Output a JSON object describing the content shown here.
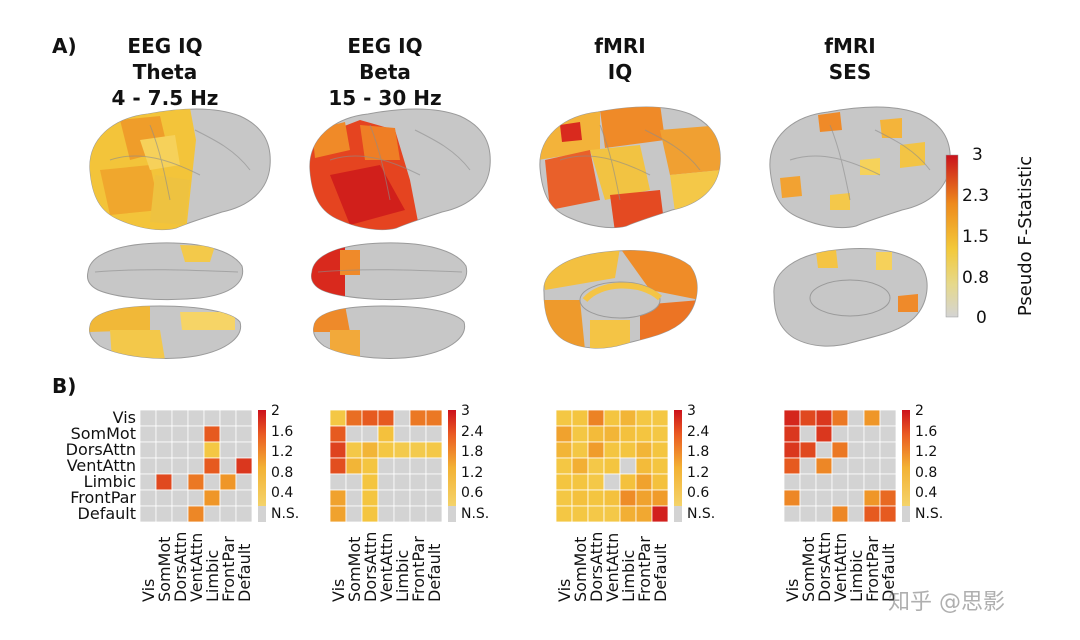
{
  "panel_a_label": "A)",
  "panel_b_label": "B)",
  "columns": [
    {
      "title_lines": [
        "EEG IQ",
        "Theta",
        "4 - 7.5 Hz"
      ]
    },
    {
      "title_lines": [
        "EEG IQ",
        "Beta",
        "15 - 30 Hz"
      ]
    },
    {
      "title_lines": [
        "fMRI",
        "IQ"
      ]
    },
    {
      "title_lines": [
        "fMRI",
        "SES"
      ]
    }
  ],
  "brain_colorbar": {
    "label": "Pseudo F-Statistic",
    "ticks": [
      "3",
      "2.3",
      "1.5",
      "0.8",
      "0"
    ]
  },
  "networks": [
    "Vis",
    "SomMot",
    "DorsAttn",
    "VentAttn",
    "Limbic",
    "FrontPar",
    "Default"
  ],
  "matrices": [
    {
      "name": "EEG IQ Theta",
      "colorbar_ticks": [
        "2",
        "1.6",
        "1.2",
        "0.8",
        "0.4",
        "N.S."
      ],
      "max": 2,
      "values": [
        [
          0,
          0,
          0,
          0,
          0,
          0,
          0
        ],
        [
          0,
          0,
          0,
          0,
          1.6,
          0,
          0
        ],
        [
          0,
          0,
          0,
          0,
          0.6,
          0,
          0
        ],
        [
          0,
          0,
          0,
          0,
          1.6,
          0,
          1.8
        ],
        [
          0,
          1.7,
          0,
          1.4,
          0,
          1.2,
          0
        ],
        [
          0,
          0,
          0,
          0,
          1.2,
          0,
          0
        ],
        [
          0,
          0,
          0,
          1.3,
          0,
          0,
          0
        ]
      ]
    },
    {
      "name": "EEG IQ Beta",
      "colorbar_ticks": [
        "3",
        "2.4",
        "1.8",
        "1.2",
        "0.6",
        "N.S."
      ],
      "max": 3,
      "values": [
        [
          0.9,
          2.2,
          2.4,
          2.4,
          0,
          2.1,
          2.1
        ],
        [
          2.4,
          0,
          0,
          1.1,
          0,
          0,
          0
        ],
        [
          2.6,
          0.8,
          1.3,
          0.9,
          0.7,
          0.7,
          0.8
        ],
        [
          2.5,
          1.3,
          1.0,
          0,
          0,
          0,
          0
        ],
        [
          0,
          0,
          1.0,
          0,
          0,
          0,
          0
        ],
        [
          1.6,
          0,
          1.0,
          0,
          0,
          0,
          0
        ],
        [
          1.6,
          0,
          1.0,
          0,
          0,
          0,
          0
        ]
      ]
    },
    {
      "name": "fMRI IQ",
      "colorbar_ticks": [
        "3",
        "2.4",
        "1.8",
        "1.2",
        "0.6",
        "N.S."
      ],
      "max": 3,
      "values": [
        [
          0.9,
          1.0,
          2.0,
          1.0,
          1.3,
          0.9,
          0.9
        ],
        [
          1.6,
          0.9,
          1.2,
          1.3,
          1.1,
          1.0,
          0.9
        ],
        [
          1.3,
          0.9,
          1.7,
          1.0,
          1.0,
          1.3,
          1.0
        ],
        [
          0.9,
          1.4,
          0.8,
          1.0,
          0,
          1.2,
          1.0
        ],
        [
          1.0,
          1.0,
          0.8,
          0,
          1.1,
          1.6,
          1.1
        ],
        [
          0.9,
          1.1,
          1.0,
          1.1,
          1.9,
          1.6,
          1.7
        ],
        [
          0.9,
          0.9,
          0.8,
          0.8,
          1.4,
          1.5,
          2.9
        ]
      ]
    },
    {
      "name": "fMRI SES",
      "colorbar_ticks": [
        "2",
        "1.6",
        "1.2",
        "0.8",
        "0.4",
        "N.S."
      ],
      "max": 2,
      "values": [
        [
          1.9,
          1.7,
          1.8,
          1.4,
          0,
          1.2,
          0
        ],
        [
          1.8,
          0,
          1.8,
          0,
          0,
          0,
          0
        ],
        [
          1.8,
          1.7,
          0,
          1.4,
          0,
          0,
          0
        ],
        [
          1.6,
          0,
          1.3,
          0,
          0,
          0,
          0
        ],
        [
          0,
          0,
          0,
          0,
          0,
          0,
          0
        ],
        [
          1.3,
          0,
          0,
          0,
          0,
          1.2,
          1.5
        ],
        [
          0,
          0,
          0,
          1.3,
          0,
          1.6,
          1.6
        ]
      ]
    }
  ],
  "watermark": "知乎 @思影"
}
